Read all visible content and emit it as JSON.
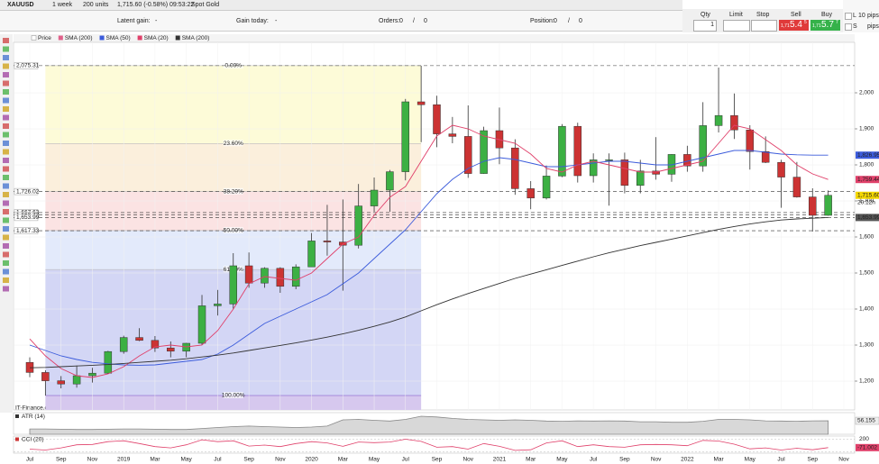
{
  "toolbar": {
    "symbol": "XAUUSD",
    "period": "1 week",
    "units": "200 units",
    "quote": "1,715.60 (-0.58%) 09:53:22",
    "instrument": "Spot Gold"
  },
  "status_bar": {
    "latent_gain_label": "Latent gain:",
    "latent_gain": "-",
    "gain_today_label": "Gain today:",
    "gain_today": "-",
    "orders_label": "Orders:",
    "orders_open": "0",
    "orders_sep": "/",
    "orders_pending": "0",
    "position_label": "Position:",
    "position_open": "0",
    "position_sep": "/",
    "position_pending": "0"
  },
  "order_panel": {
    "qty_label": "Qty",
    "qty": "1",
    "limit_label": "Limit",
    "stop_label": "Stop",
    "sell_label": "Sell",
    "buy_label": "Buy",
    "sell_price": {
      "prefix": "1,71",
      "big": "5.4",
      "small": "5"
    },
    "buy_price": {
      "prefix": "1,71",
      "big": "5.7",
      "small": "7"
    },
    "long_label": "L",
    "short_label": "S",
    "pips_value": "10",
    "pips_label": "pips",
    "pips_label_2": "pips"
  },
  "chart_data": {
    "type": "candlestick",
    "price_name": "Price",
    "extra_legend": {
      "name": "SMA (200)",
      "color": "#e0608a"
    },
    "categories": [
      "Jul",
      null,
      "Sep",
      null,
      "Nov",
      null,
      "2019",
      null,
      "Mar",
      null,
      "May",
      null,
      "Jul",
      null,
      "Sep",
      null,
      "Nov",
      null,
      "2020",
      null,
      "Mar",
      null,
      "May",
      null,
      "Jul",
      null,
      "Sep",
      null,
      "Nov",
      null,
      "2021",
      null,
      "Mar",
      null,
      "May",
      null,
      "Jul",
      null,
      "Sep",
      null,
      "Nov",
      null,
      "2022",
      null,
      "Mar",
      null,
      "May",
      null,
      "Jul",
      null,
      "Sep",
      null,
      "Nov"
    ],
    "open": [
      1252,
      1224,
      1201,
      1192,
      1215,
      1222,
      1282,
      1321,
      1313,
      1292,
      1283,
      1305,
      1409,
      1414,
      1520,
      1472,
      1513,
      1463,
      1517,
      1589,
      1586,
      1577,
      1686,
      1730,
      1781,
      1975,
      1967,
      1886,
      1879,
      1776,
      1895,
      1847,
      1734,
      1708,
      1769,
      1907,
      1770,
      1814,
      1814,
      1743,
      1783,
      1774,
      1829,
      1797,
      1909,
      1937,
      1897,
      1837,
      1807,
      1766,
      1711,
      1660,
      null
    ],
    "high": [
      1266,
      1230,
      1214,
      1243,
      1237,
      1284,
      1326,
      1347,
      1325,
      1310,
      1306,
      1439,
      1453,
      1555,
      1557,
      1516,
      1516,
      1524,
      1611,
      1689,
      1704,
      1747,
      1765,
      1786,
      1983,
      2075,
      1992,
      1933,
      1965,
      1906,
      1959,
      1871,
      1755,
      1798,
      1913,
      1917,
      1832,
      1832,
      1834,
      1814,
      1877,
      1830,
      1853,
      1974,
      2070,
      1998,
      1910,
      1879,
      1814,
      1808,
      1735,
      1729,
      null
    ],
    "low": [
      1211,
      1160,
      1180,
      1182,
      1196,
      1221,
      1276,
      1311,
      1281,
      1266,
      1266,
      1301,
      1382,
      1400,
      1459,
      1459,
      1445,
      1455,
      1517,
      1548,
      1451,
      1568,
      1670,
      1670,
      1757,
      1863,
      1849,
      1860,
      1764,
      1775,
      1802,
      1717,
      1677,
      1704,
      1766,
      1751,
      1751,
      1687,
      1721,
      1721,
      1759,
      1753,
      1781,
      1781,
      1890,
      1872,
      1787,
      1805,
      1681,
      1709,
      1615,
      1659,
      null
    ],
    "close": [
      1224,
      1201,
      1192,
      1215,
      1222,
      1282,
      1321,
      1313,
      1292,
      1283,
      1305,
      1409,
      1414,
      1520,
      1472,
      1513,
      1463,
      1517,
      1589,
      1586,
      1577,
      1686,
      1730,
      1781,
      1975,
      1967,
      1886,
      1879,
      1776,
      1895,
      1847,
      1734,
      1708,
      1769,
      1907,
      1770,
      1814,
      1814,
      1743,
      1783,
      1774,
      1829,
      1797,
      1909,
      1937,
      1897,
      1837,
      1807,
      1766,
      1711,
      1660,
      1715.6,
      null
    ],
    "up_color": "#3cb043",
    "down_color": "#cc3333",
    "series": [
      {
        "name": "SMA (50)",
        "color": "#3b5bdb",
        "values": [
          1300,
          1285,
          1270,
          1260,
          1252,
          1248,
          1245,
          1244,
          1245,
          1250,
          1255,
          1260,
          1275,
          1300,
          1330,
          1360,
          1380,
          1400,
          1420,
          1440,
          1470,
          1500,
          1540,
          1580,
          1620,
          1670,
          1720,
          1760,
          1790,
          1810,
          1820,
          1815,
          1805,
          1795,
          1795,
          1800,
          1805,
          1810,
          1810,
          1805,
          1800,
          1800,
          1810,
          1820,
          1830,
          1840,
          1840,
          1835,
          1830,
          1828,
          1827,
          1826.95,
          null
        ]
      },
      {
        "name": "SMA (20)",
        "color": "#e0406a",
        "values": [
          1317,
          1270,
          1235,
          1215,
          1210,
          1220,
          1240,
          1270,
          1295,
          1300,
          1295,
          1300,
          1340,
          1400,
          1470,
          1490,
          1485,
          1480,
          1500,
          1540,
          1580,
          1600,
          1660,
          1710,
          1740,
          1810,
          1880,
          1910,
          1900,
          1880,
          1870,
          1860,
          1830,
          1790,
          1780,
          1800,
          1810,
          1800,
          1790,
          1780,
          1780,
          1790,
          1800,
          1810,
          1860,
          1910,
          1900,
          1870,
          1840,
          1800,
          1775,
          1759.44,
          null
        ]
      },
      {
        "name": "SMA (200)",
        "color": "#333333",
        "values": [
          1237,
          1238,
          1240,
          1242,
          1244,
          1246,
          1249,
          1252,
          1255,
          1258,
          1262,
          1267,
          1272,
          1278,
          1285,
          1292,
          1299,
          1306,
          1314,
          1322,
          1331,
          1341,
          1352,
          1364,
          1378,
          1395,
          1412,
          1428,
          1443,
          1457,
          1471,
          1485,
          1497,
          1509,
          1521,
          1533,
          1545,
          1556,
          1566,
          1576,
          1585,
          1594,
          1603,
          1612,
          1621,
          1629,
          1636,
          1642,
          1647,
          1650,
          1652,
          1653.99,
          null
        ]
      }
    ],
    "ylim": [
      1120,
      2140
    ],
    "yticks": [
      {
        "value": 1200,
        "label": "1,200"
      },
      {
        "value": 1300,
        "label": "1,300"
      },
      {
        "value": 1400,
        "label": "1,400"
      },
      {
        "value": 1500,
        "label": "1,500"
      },
      {
        "value": 1600,
        "label": "1,600"
      },
      {
        "value": 1700,
        "label": "1,700"
      },
      {
        "value": 1800,
        "label": "1,800"
      },
      {
        "value": 1900,
        "label": "1,900"
      },
      {
        "value": 2000,
        "label": "2,000"
      }
    ],
    "grid": true,
    "fibonacci": {
      "high": 2075.31,
      "low": 1160,
      "from_category": 1,
      "to_category": 25,
      "levels": [
        {
          "value": 0,
          "label": "0.00%"
        },
        {
          "value": 23.6,
          "label": "23.60%"
        },
        {
          "value": 38.2,
          "label": "38.20%"
        },
        {
          "value": 50,
          "label": "50.00%"
        },
        {
          "value": 61.8,
          "label": "61.80%"
        },
        {
          "value": 100,
          "label": "100.00%"
        }
      ],
      "zone_colors": [
        "#fdfbd8",
        "#fbefdc",
        "#fbe3e3",
        "#e3eafb",
        "#d3d6f5",
        "#d6c8ee"
      ]
    },
    "level_lines": [
      {
        "value": 2075.31,
        "label": "2,075.31"
      },
      {
        "value": 1726.02,
        "label": "1,726.02"
      },
      {
        "value": 1667.63,
        "label": "1,667.63"
      },
      {
        "value": 1660.72,
        "label": "1,660.72"
      },
      {
        "value": 1653.99,
        "label": "1,653.99"
      },
      {
        "value": 1617.33,
        "label": "1,617.33"
      }
    ],
    "price_labels": [
      {
        "value": 1826.95,
        "label": "1,826.95",
        "color": "#3b5bdb"
      },
      {
        "value": 1759.44,
        "label": "1,759.44",
        "color": "#e0406a"
      },
      {
        "value": 1715.6,
        "label": "1,715.60",
        "color": "#f5d800"
      },
      {
        "value": 1653.99,
        "label": "1,653.99",
        "color": "#555555"
      }
    ],
    "countdown": "20:12h",
    "atr": {
      "name": "ATR (14)",
      "color": "#888888",
      "ylim": [
        0,
        90
      ],
      "last_label": "56.155",
      "values": [
        22,
        22,
        21,
        20,
        20,
        21,
        22,
        22,
        21,
        20,
        20,
        24,
        28,
        32,
        34,
        32,
        30,
        28,
        30,
        34,
        60,
        62,
        58,
        55,
        62,
        75,
        72,
        66,
        62,
        60,
        58,
        60,
        58,
        55,
        54,
        56,
        55,
        56,
        55,
        52,
        52,
        50,
        50,
        54,
        62,
        62,
        60,
        56,
        55,
        54,
        56,
        56.155,
        null
      ]
    },
    "cci": {
      "name": "CCI (20)",
      "color": "#e0406a",
      "ylim": [
        -250,
        300
      ],
      "last_label": "-71.002",
      "yticks": [
        200
      ],
      "values": [
        -120,
        -150,
        -80,
        20,
        30,
        120,
        150,
        60,
        -40,
        -80,
        20,
        180,
        120,
        150,
        -20,
        10,
        -40,
        60,
        120,
        80,
        -30,
        110,
        90,
        110,
        200,
        130,
        -60,
        -40,
        -120,
        60,
        -30,
        -160,
        -140,
        80,
        150,
        -40,
        20,
        -40,
        -60,
        20,
        30,
        20,
        -10,
        160,
        140,
        40,
        -110,
        -80,
        -150,
        -90,
        -140,
        -71.002,
        null
      ]
    }
  },
  "footer": {
    "source": "IT-Finance.com - Real-Time"
  }
}
